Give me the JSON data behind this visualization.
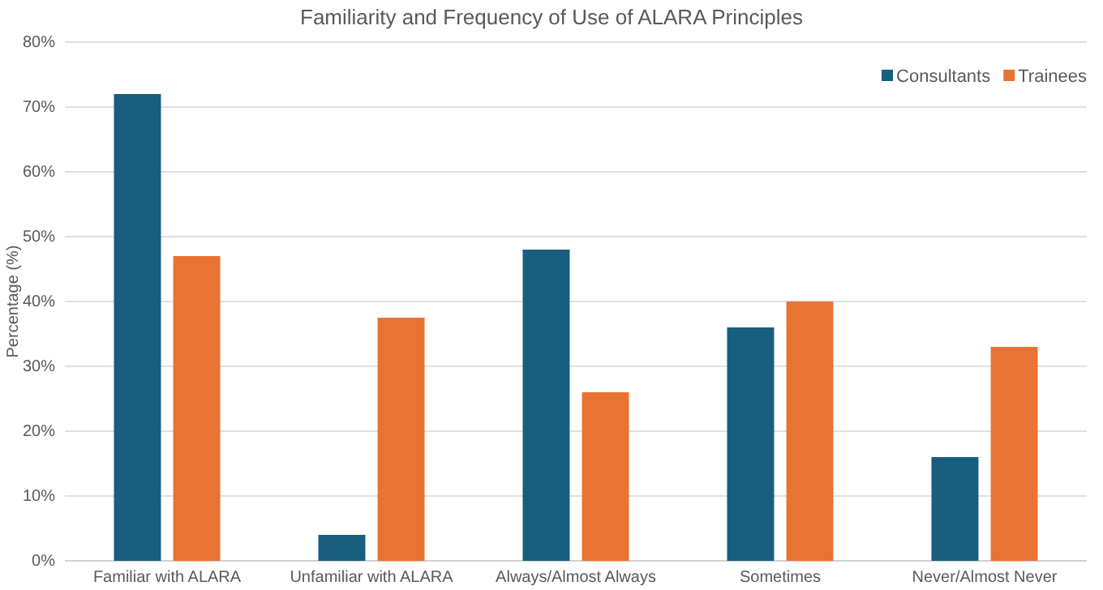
{
  "chart_data": {
    "type": "bar",
    "title": "Familiarity and Frequency of Use of ALARA Principles",
    "ylabel": "Percentage (%)",
    "categories": [
      "Familiar with ALARA",
      "Unfamiliar with ALARA",
      "Always/Almost Always",
      "Sometimes",
      "Never/Almost Never"
    ],
    "series": [
      {
        "name": "Consultants",
        "color": "#175e7f",
        "values": [
          72,
          4,
          48,
          36,
          16
        ]
      },
      {
        "name": "Trainees",
        "color": "#e97333",
        "values": [
          47,
          37.5,
          26,
          40,
          33
        ]
      }
    ],
    "ylim": [
      0,
      80
    ],
    "yticks": [
      {
        "value": 0,
        "label": "0%"
      },
      {
        "value": 10,
        "label": "10%"
      },
      {
        "value": 20,
        "label": "20%"
      },
      {
        "value": 30,
        "label": "30%"
      },
      {
        "value": 40,
        "label": "40%"
      },
      {
        "value": 50,
        "label": "50%"
      },
      {
        "value": 60,
        "label": "60%"
      },
      {
        "value": 70,
        "label": "70%"
      },
      {
        "value": 80,
        "label": "80%"
      }
    ],
    "grid": "y",
    "legend": "top right"
  }
}
